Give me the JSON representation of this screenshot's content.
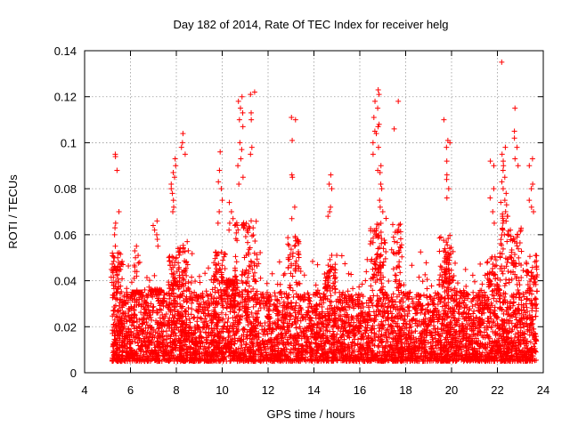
{
  "chart_data": {
    "type": "scatter",
    "title": "Day 182 of 2014, Rate Of TEC Index for receiver helg",
    "xlabel": "GPS time / hours",
    "ylabel": "ROTI / TECUs",
    "xlim": [
      4,
      24
    ],
    "ylim": [
      0,
      0.14
    ],
    "xticks": [
      4,
      6,
      8,
      10,
      12,
      14,
      16,
      18,
      20,
      22,
      24
    ],
    "yticks": [
      0,
      0.02,
      0.04,
      0.06,
      0.08,
      0.1,
      0.12,
      0.14
    ],
    "xtick_labels": [
      "4",
      "6",
      "8",
      "10",
      "12",
      "14",
      "16",
      "18",
      "20",
      "22",
      "24"
    ],
    "ytick_labels": [
      "0",
      "0.02",
      "0.04",
      "0.06",
      "0.08",
      "0.1",
      "0.12",
      "0.14"
    ],
    "grid": true,
    "marker": "plus",
    "color": "#ff0000",
    "series": [
      {
        "name": "ROTI",
        "x_range": [
          5.2,
          23.7
        ],
        "baseline_band": [
          0.005,
          0.035
        ],
        "clusters": [
          {
            "x": 5.4,
            "values": [
              0.095,
              0.094,
              0.088,
              0.07,
              0.065,
              0.063,
              0.06,
              0.055,
              0.052,
              0.05,
              0.048,
              0.045
            ]
          },
          {
            "x": 6.3,
            "values": [
              0.055,
              0.053,
              0.051,
              0.05,
              0.048,
              0.046,
              0.044
            ]
          },
          {
            "x": 7.1,
            "values": [
              0.066,
              0.064,
              0.062,
              0.06,
              0.058,
              0.055
            ]
          },
          {
            "x": 7.9,
            "values": [
              0.093,
              0.09,
              0.087,
              0.085,
              0.082,
              0.08,
              0.078,
              0.075,
              0.072,
              0.07
            ]
          },
          {
            "x": 8.3,
            "values": [
              0.104,
              0.1,
              0.098,
              0.095
            ]
          },
          {
            "x": 9.9,
            "values": [
              0.096,
              0.088,
              0.083,
              0.08,
              0.075,
              0.07,
              0.065
            ]
          },
          {
            "x": 10.4,
            "values": [
              0.074,
              0.07,
              0.067,
              0.065,
              0.062
            ]
          },
          {
            "x": 10.8,
            "values": [
              0.12,
              0.118,
              0.115,
              0.113,
              0.11,
              0.107,
              0.1,
              0.097,
              0.093,
              0.09,
              0.085,
              0.082
            ]
          },
          {
            "x": 11.3,
            "values": [
              0.122,
              0.121,
              0.113,
              0.11,
              0.098,
              0.095
            ]
          },
          {
            "x": 13.1,
            "values": [
              0.111,
              0.11,
              0.101,
              0.086,
              0.085,
              0.072,
              0.067
            ]
          },
          {
            "x": 14.7,
            "values": [
              0.086,
              0.082,
              0.08,
              0.072,
              0.07,
              0.068
            ]
          },
          {
            "x": 16.7,
            "values": [
              0.118,
              0.115,
              0.111,
              0.107,
              0.105,
              0.104,
              0.1,
              0.095
            ]
          },
          {
            "x": 17.6,
            "values": [
              0.118,
              0.106
            ]
          },
          {
            "x": 16.9,
            "values": [
              0.123,
              0.121,
              0.108,
              0.098,
              0.09,
              0.088,
              0.087,
              0.082,
              0.08,
              0.075,
              0.072,
              0.07
            ]
          },
          {
            "x": 19.9,
            "values": [
              0.101,
              0.1,
              0.098,
              0.092,
              0.086,
              0.084,
              0.08,
              0.076
            ]
          },
          {
            "x": 19.7,
            "values": [
              0.11
            ]
          },
          {
            "x": 21.8,
            "values": [
              0.092,
              0.09,
              0.08,
              0.076,
              0.07,
              0.065
            ]
          },
          {
            "x": 22.3,
            "values": [
              0.135,
              0.098,
              0.095,
              0.092,
              0.09,
              0.088,
              0.085,
              0.083,
              0.08,
              0.078,
              0.075,
              0.073,
              0.07,
              0.068,
              0.065,
              0.062,
              0.06
            ]
          },
          {
            "x": 22.8,
            "values": [
              0.115,
              0.105,
              0.102,
              0.098,
              0.093,
              0.09
            ]
          },
          {
            "x": 23.5,
            "values": [
              0.093,
              0.09,
              0.082,
              0.08,
              0.075,
              0.072,
              0.07
            ]
          }
        ]
      }
    ]
  }
}
